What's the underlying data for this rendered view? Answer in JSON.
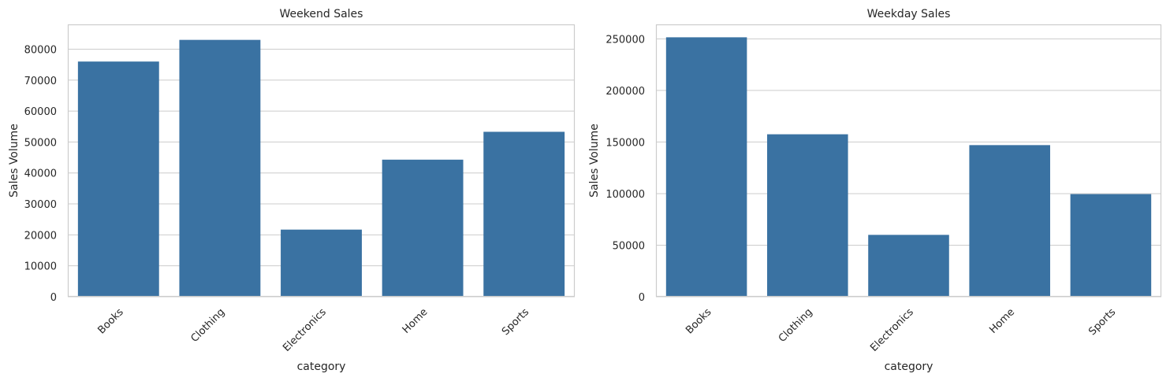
{
  "chart_data": [
    {
      "type": "bar",
      "title": "Weekend Sales",
      "xlabel": "category",
      "ylabel": "Sales Volume",
      "categories": [
        "Books",
        "Clothing",
        "Electronics",
        "Home",
        "Sports"
      ],
      "values": [
        76000,
        83000,
        21700,
        44300,
        53300
      ],
      "ylim": [
        0,
        88000
      ],
      "yticks": [
        0,
        10000,
        20000,
        30000,
        40000,
        50000,
        60000,
        70000,
        80000
      ],
      "ytick_labels": [
        "0",
        "10000",
        "20000",
        "30000",
        "40000",
        "50000",
        "60000",
        "70000",
        "80000"
      ],
      "xtick_rotation": 45,
      "grid": "horizontal",
      "bar_color": "#3a72a2"
    },
    {
      "type": "bar",
      "title": "Weekday Sales",
      "xlabel": "category",
      "ylabel": "Sales Volume",
      "categories": [
        "Books",
        "Clothing",
        "Electronics",
        "Home",
        "Sports"
      ],
      "values": [
        251500,
        157500,
        60000,
        147000,
        99500
      ],
      "ylim": [
        0,
        264000
      ],
      "yticks": [
        0,
        50000,
        100000,
        150000,
        200000,
        250000
      ],
      "ytick_labels": [
        "0",
        "50000",
        "100000",
        "150000",
        "200000",
        "250000"
      ],
      "xtick_rotation": 45,
      "grid": "horizontal",
      "bar_color": "#3a72a2"
    }
  ],
  "colors": {
    "background": "#ffffff",
    "grid": "#cccccc",
    "spine": "#cccccc",
    "text": "#262626"
  }
}
